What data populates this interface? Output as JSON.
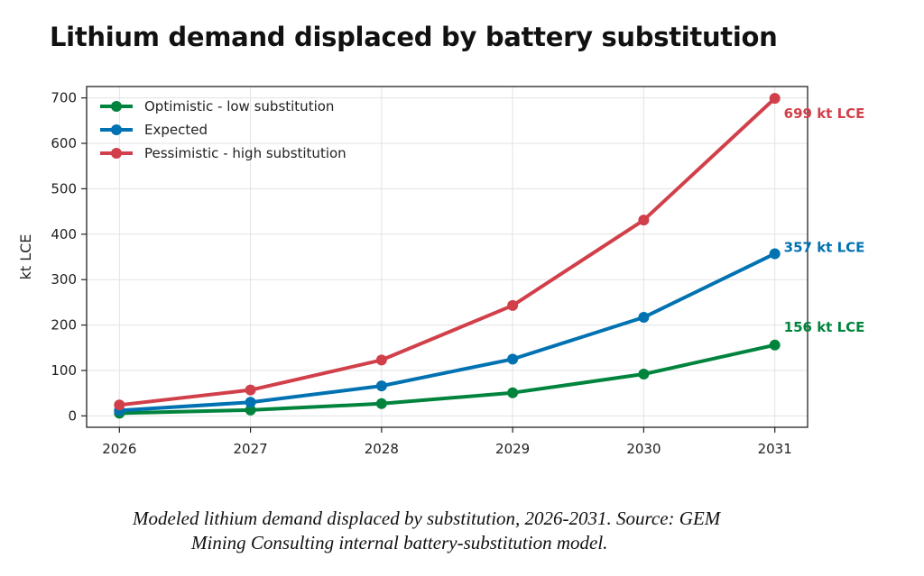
{
  "title": "Lithium demand displaced by battery substitution",
  "caption": {
    "line1": "Modeled lithium demand displaced by substitution, 2026-2031. Source: GEM",
    "line2": "Mining Consulting internal battery-substitution model."
  },
  "chart_data": {
    "type": "line",
    "x": [
      2026,
      2027,
      2028,
      2029,
      2030,
      2031
    ],
    "xlim": [
      2025.75,
      2031.25
    ],
    "ylim": [
      -25,
      725
    ],
    "yticks": [
      0,
      100,
      200,
      300,
      400,
      500,
      600,
      700
    ],
    "ylabel": "kt LCE",
    "grid": true,
    "legend_position": "top-left",
    "series": [
      {
        "name": "Optimistic - low substitution",
        "color": "#00843d",
        "values": [
          6,
          13,
          27,
          51,
          92,
          156
        ],
        "end_label": "156 kt LCE"
      },
      {
        "name": "Expected",
        "color": "#0072b2",
        "values": [
          12,
          30,
          66,
          125,
          217,
          357
        ],
        "end_label": "357 kt LCE"
      },
      {
        "name": "Pessimistic - high substitution",
        "color": "#d1404a",
        "values": [
          24,
          57,
          123,
          243,
          431,
          699
        ],
        "end_label": "699 kt LCE"
      }
    ]
  }
}
